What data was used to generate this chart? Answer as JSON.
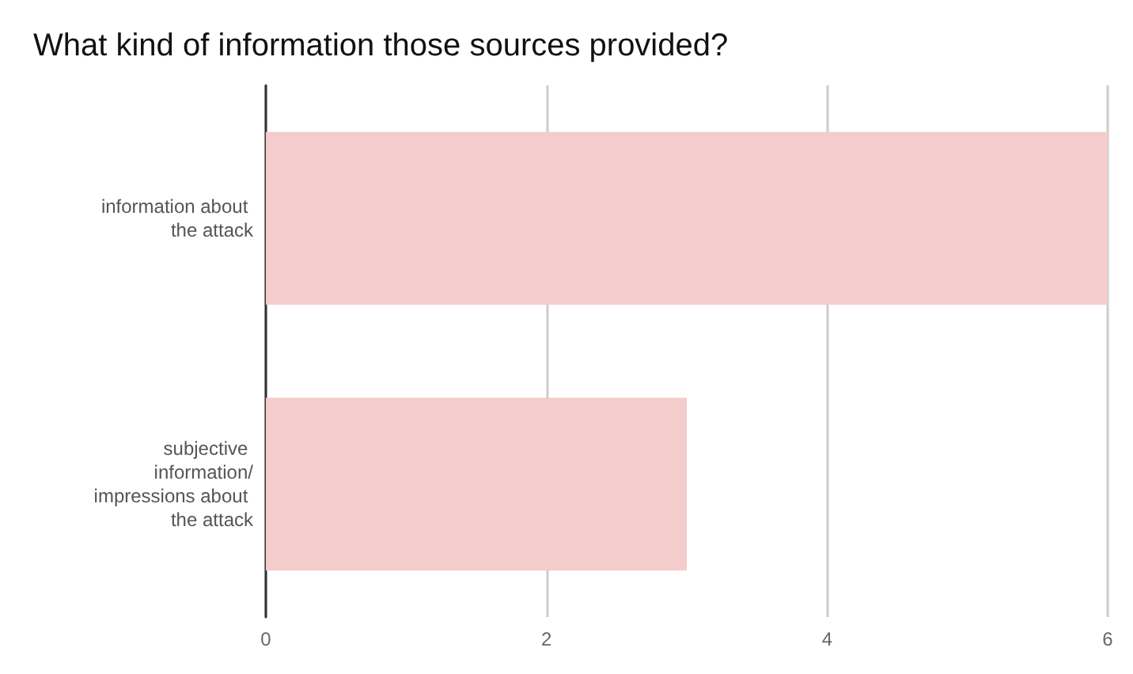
{
  "chart_data": {
    "type": "bar",
    "orientation": "horizontal",
    "title": "What kind of information those sources provided?",
    "categories": [
      "information about the attack",
      "subjective information/impressions about the attack"
    ],
    "values": [
      6,
      3
    ],
    "color": "#f4cccc",
    "xlim": [
      0,
      6
    ],
    "xticks": [
      0,
      2,
      4,
      6
    ],
    "grid": "x"
  }
}
